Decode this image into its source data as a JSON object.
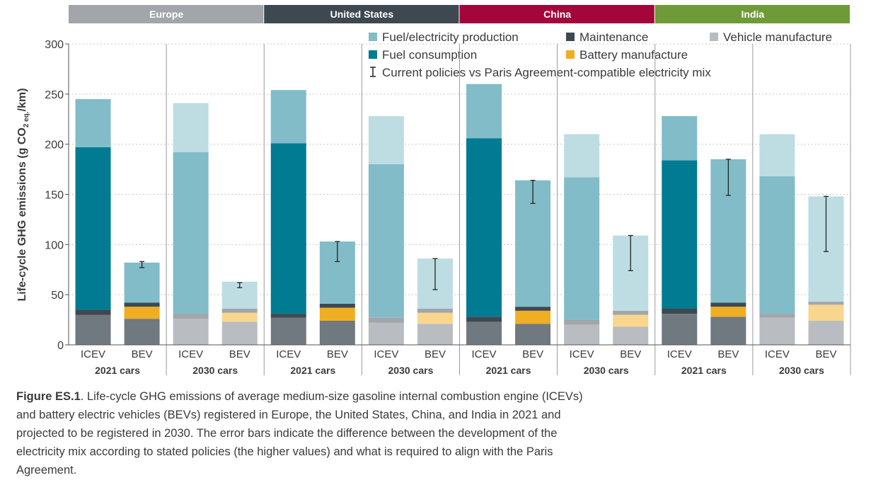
{
  "chart_data": {
    "type": "bar",
    "stacked": true,
    "ylabel": "Life-cycle GHG emissions (g CO",
    "ylabel_sub": "2 eq.",
    "ylabel_tail": "/km)",
    "ylim": [
      0,
      300
    ],
    "yticks": [
      "0",
      "50",
      "100",
      "150",
      "200",
      "250",
      "300"
    ],
    "regions": [
      {
        "name": "Europe",
        "color": "#a2a5aa"
      },
      {
        "name": "United States",
        "color": "#3e4850"
      },
      {
        "name": "China",
        "color": "#a3063b"
      },
      {
        "name": "India",
        "color": "#6f9a38"
      }
    ],
    "group_labels": [
      "2021 cars",
      "2030 cars"
    ],
    "categories": [
      "ICEV",
      "BEV"
    ],
    "legend": {
      "fuel_production": "Fuel/electricity production",
      "fuel_consumption": "Fuel consumption",
      "maintenance": "Maintenance",
      "battery": "Battery manufacture",
      "vehicle": "Vehicle manufacture",
      "errorbar": "Current policies vs Paris Agreement-compatible electricity mix"
    },
    "colors": {
      "vehicle": "#707880",
      "vehicle_light": "#b9bcc0",
      "maintenance": "#3e4850",
      "maintenance_light": "#a2a5aa",
      "battery": "#f0ae22",
      "battery_light": "#f8d68e",
      "fuel_consumption": "#007b92",
      "fuel_production": "#82bcc8",
      "fuel_production_light": "#bddde3"
    },
    "bars": [
      {
        "region": "Europe",
        "year": "2021 cars",
        "type": "ICEV",
        "light": false,
        "vehicle": 30,
        "battery": 0,
        "maintenance": 5,
        "fuel_consumption": 162,
        "fuel_production": 48,
        "total": 245
      },
      {
        "region": "Europe",
        "year": "2021 cars",
        "type": "BEV",
        "light": false,
        "vehicle": 26,
        "battery": 12,
        "maintenance": 4,
        "fuel_consumption": 0,
        "fuel_production": 40,
        "total": 82,
        "err_low": 77,
        "err_high": 83
      },
      {
        "region": "Europe",
        "year": "2030 cars",
        "type": "ICEV",
        "light": true,
        "vehicle": 26,
        "battery": 0,
        "maintenance": 5,
        "fuel_consumption": 0,
        "fuel_production": 161,
        "fuel_production_light": 49,
        "total": 241
      },
      {
        "region": "Europe",
        "year": "2030 cars",
        "type": "BEV",
        "light": true,
        "vehicle": 23,
        "battery": 9,
        "maintenance": 4,
        "fuel_consumption": 0,
        "fuel_production": 0,
        "fuel_production_light": 27,
        "total": 63,
        "err_low": 57,
        "err_high": 62
      },
      {
        "region": "United States",
        "year": "2021 cars",
        "type": "ICEV",
        "light": false,
        "vehicle": 27,
        "battery": 0,
        "maintenance": 4,
        "fuel_consumption": 170,
        "fuel_production": 53,
        "total": 254
      },
      {
        "region": "United States",
        "year": "2021 cars",
        "type": "BEV",
        "light": false,
        "vehicle": 24,
        "battery": 13,
        "maintenance": 4,
        "fuel_consumption": 0,
        "fuel_production": 62,
        "total": 103,
        "err_low": 83,
        "err_high": 103
      },
      {
        "region": "United States",
        "year": "2030 cars",
        "type": "ICEV",
        "light": true,
        "vehicle": 22,
        "battery": 0,
        "maintenance": 5,
        "fuel_consumption": 0,
        "fuel_production": 153,
        "fuel_production_light": 48,
        "total": 228
      },
      {
        "region": "United States",
        "year": "2030 cars",
        "type": "BEV",
        "light": true,
        "vehicle": 21,
        "battery": 11,
        "maintenance": 4,
        "fuel_consumption": 0,
        "fuel_production": 0,
        "fuel_production_light": 50,
        "total": 86,
        "err_low": 55,
        "err_high": 86
      },
      {
        "region": "China",
        "year": "2021 cars",
        "type": "ICEV",
        "light": false,
        "vehicle": 23,
        "battery": 0,
        "maintenance": 5,
        "fuel_consumption": 178,
        "fuel_production": 54,
        "total": 260
      },
      {
        "region": "China",
        "year": "2021 cars",
        "type": "BEV",
        "light": false,
        "vehicle": 21,
        "battery": 13,
        "maintenance": 4,
        "fuel_consumption": 0,
        "fuel_production": 126,
        "total": 164,
        "err_low": 141,
        "err_high": 164
      },
      {
        "region": "China",
        "year": "2030 cars",
        "type": "ICEV",
        "light": true,
        "vehicle": 20,
        "battery": 0,
        "maintenance": 5,
        "fuel_consumption": 0,
        "fuel_production": 142,
        "fuel_production_light": 43,
        "total": 210
      },
      {
        "region": "China",
        "year": "2030 cars",
        "type": "BEV",
        "light": true,
        "vehicle": 18,
        "battery": 12,
        "maintenance": 4,
        "fuel_consumption": 0,
        "fuel_production": 0,
        "fuel_production_light": 75,
        "total": 109,
        "err_low": 74,
        "err_high": 109
      },
      {
        "region": "India",
        "year": "2021 cars",
        "type": "ICEV",
        "light": false,
        "vehicle": 31,
        "battery": 0,
        "maintenance": 5,
        "fuel_consumption": 148,
        "fuel_production": 44,
        "total": 228
      },
      {
        "region": "India",
        "year": "2021 cars",
        "type": "BEV",
        "light": false,
        "vehicle": 28,
        "battery": 10,
        "maintenance": 4,
        "fuel_consumption": 0,
        "fuel_production": 143,
        "total": 185,
        "err_low": 149,
        "err_high": 185
      },
      {
        "region": "India",
        "year": "2030 cars",
        "type": "ICEV",
        "light": true,
        "vehicle": 27,
        "battery": 0,
        "maintenance": 4,
        "fuel_consumption": 0,
        "fuel_production": 137,
        "fuel_production_light": 42,
        "total": 210
      },
      {
        "region": "India",
        "year": "2030 cars",
        "type": "BEV",
        "light": true,
        "vehicle": 24,
        "battery": 16,
        "maintenance": 3,
        "fuel_consumption": 0,
        "fuel_production": 0,
        "fuel_production_light": 105,
        "total": 148,
        "err_low": 93,
        "err_high": 148
      }
    ]
  },
  "caption": {
    "label": "Figure ES.1",
    "text": ". Life-cycle GHG emissions of average medium-size gasoline internal combustion engine (ICEVs) and battery electric vehicles (BEVs) registered in Europe, the United States, China, and India in 2021 and projected to be registered in 2030. The error bars indicate the difference between the development of the electricity mix according to stated policies (the higher values) and what is required to align with the Paris Agreement."
  }
}
